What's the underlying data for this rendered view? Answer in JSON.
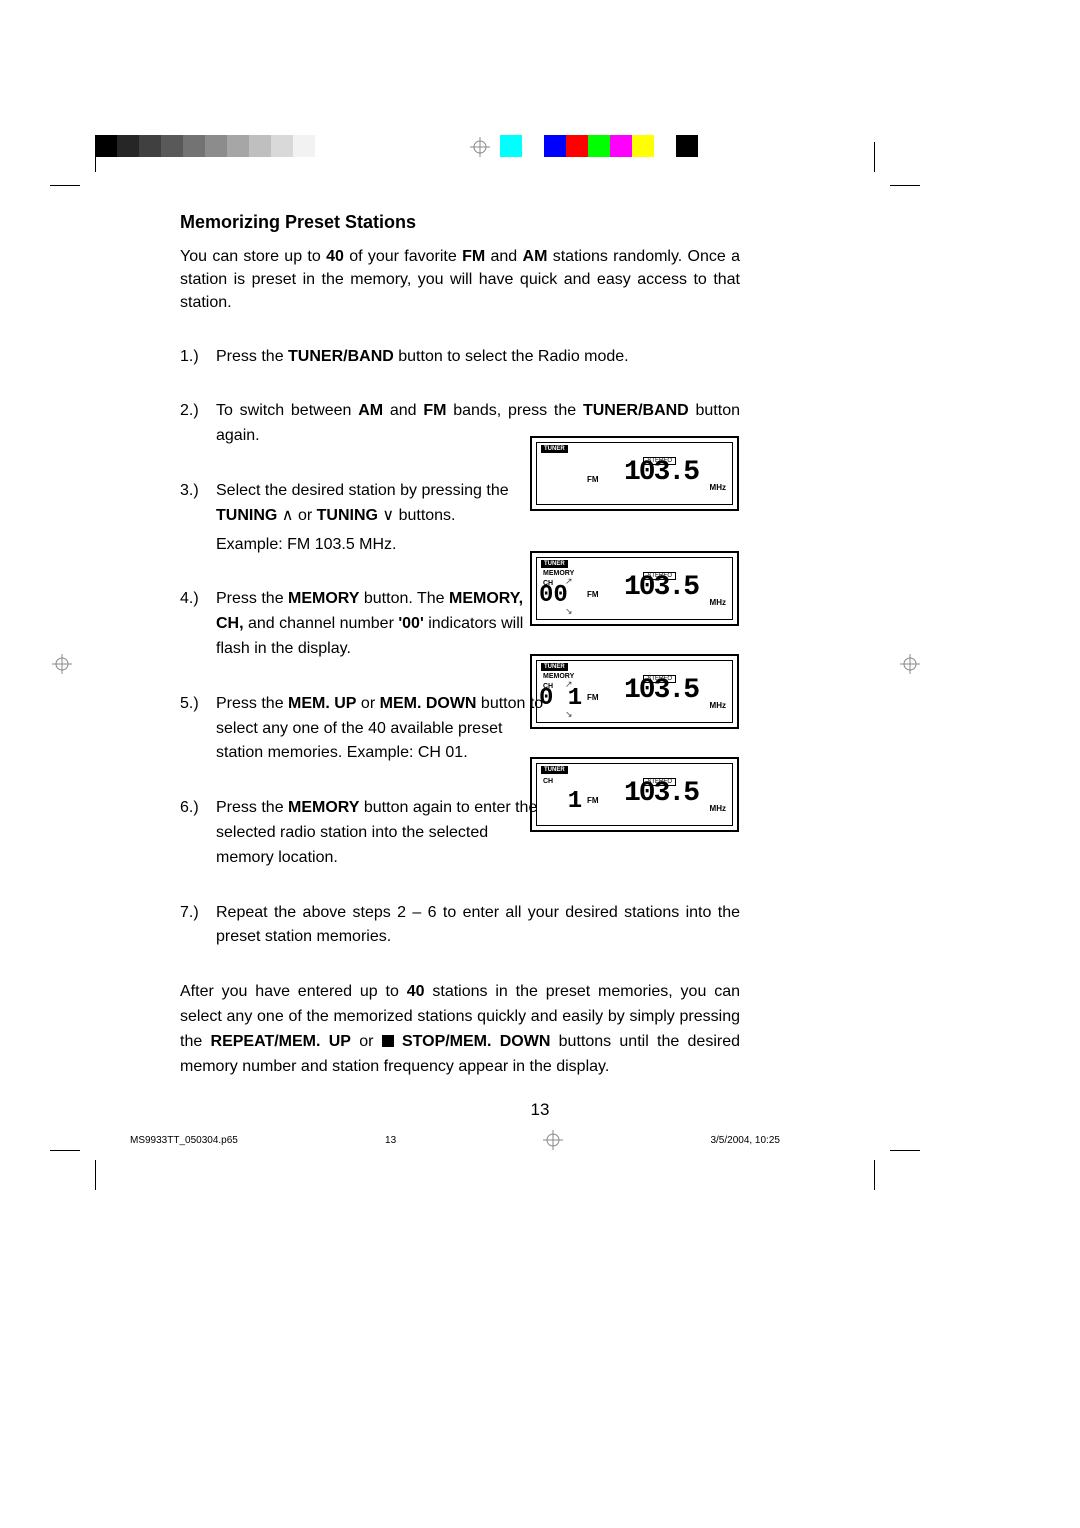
{
  "section_title": "Memorizing Preset Stations",
  "intro_part1": "You can store up to ",
  "intro_bold1": "40",
  "intro_part2": " of your favorite ",
  "intro_bold2": "FM",
  "intro_part3": " and ",
  "intro_bold3": "AM",
  "intro_part4": " stations randomly. Once a station is preset in the memory, you will have quick and easy access to that station.",
  "steps": {
    "s1": {
      "num": "1.)",
      "text_a": "Press the ",
      "bold_a": "TUNER/BAND",
      "text_b": " button to select the Radio mode."
    },
    "s2": {
      "num": "2.)",
      "text_a": "To switch between ",
      "bold_a": "AM",
      "text_b": " and ",
      "bold_b": "FM",
      "text_c": " bands, press the ",
      "bold_c": "TUNER/BAND",
      "text_d": " button again."
    },
    "s3": {
      "num": "3.)",
      "text_a": "Select the desired station by pressing the ",
      "bold_a": "TUNING ",
      "up": "∧",
      "text_b": " or ",
      "bold_b": "TUNING ",
      "down": "∨",
      "text_c": " buttons.",
      "example": "Example: FM 103.5 MHz."
    },
    "s4": {
      "num": "4.)",
      "text_a": "Press the ",
      "bold_a": "MEMORY",
      "text_b": " button. The ",
      "bold_b": "MEMORY, CH,",
      "text_c": " and channel number ",
      "bold_c": "'00'",
      "text_d": "  indicators will flash in the display."
    },
    "s5": {
      "num": "5.)",
      "text_a": "Press the ",
      "bold_a": "MEM. UP",
      "text_b": " or ",
      "bold_b": "MEM. DOWN",
      "text_c": " button to select any one of the 40 available preset station memories. Example: CH 01."
    },
    "s6": {
      "num": "6.)",
      "text_a": "Press the ",
      "bold_a": "MEMORY",
      "text_b": " button again to enter the selected radio station into the selected memory location."
    },
    "s7": {
      "num": "7.)",
      "text": "Repeat the above steps 2 – 6 to enter all your desired stations into the preset station memories."
    }
  },
  "after_a": "After you have entered up to ",
  "after_bold1": "40",
  "after_b": " stations in the preset memories, you can select any one of the memorized stations quickly and easily by simply pressing the ",
  "after_bold2": "REPEAT/MEM. UP",
  "after_c": " or ",
  "after_bold3": " STOP/MEM. DOWN",
  "after_d": " buttons until the desired memory number and station frequency appear in the display.",
  "page_number": "13",
  "footer_file": "MS9933TT_050304.p65",
  "footer_page": "13",
  "footer_date": "3/5/2004, 10:25",
  "lcd": {
    "tuner_label": "TUNER",
    "memory_label": "MEMORY",
    "ch_label": "CH",
    "fm_label": "FM",
    "stereo_label": "STEREO",
    "freq": "103.5",
    "unit": "MHz",
    "panel3_tag": "TUNER",
    "panel4_ch00": "00",
    "panel5_ch01": "0 1",
    "panel6_ch1": "  1"
  },
  "colorbar_left": [
    "#000000",
    "#262626",
    "#404040",
    "#595959",
    "#737373",
    "#8c8c8c",
    "#a6a6a6",
    "#bfbfbf",
    "#d9d9d9",
    "#f2f2f2"
  ],
  "colorbar_right": [
    "#00ffff",
    "#ffffff",
    "#0000ff",
    "#ff0000",
    "#00ff00",
    "#ff00ff",
    "#ffff00",
    "#ffffff",
    "#000000",
    "#ffffff"
  ],
  "colorbar_widths": [
    22,
    22,
    22,
    22,
    22,
    22,
    22,
    22,
    22,
    22
  ]
}
